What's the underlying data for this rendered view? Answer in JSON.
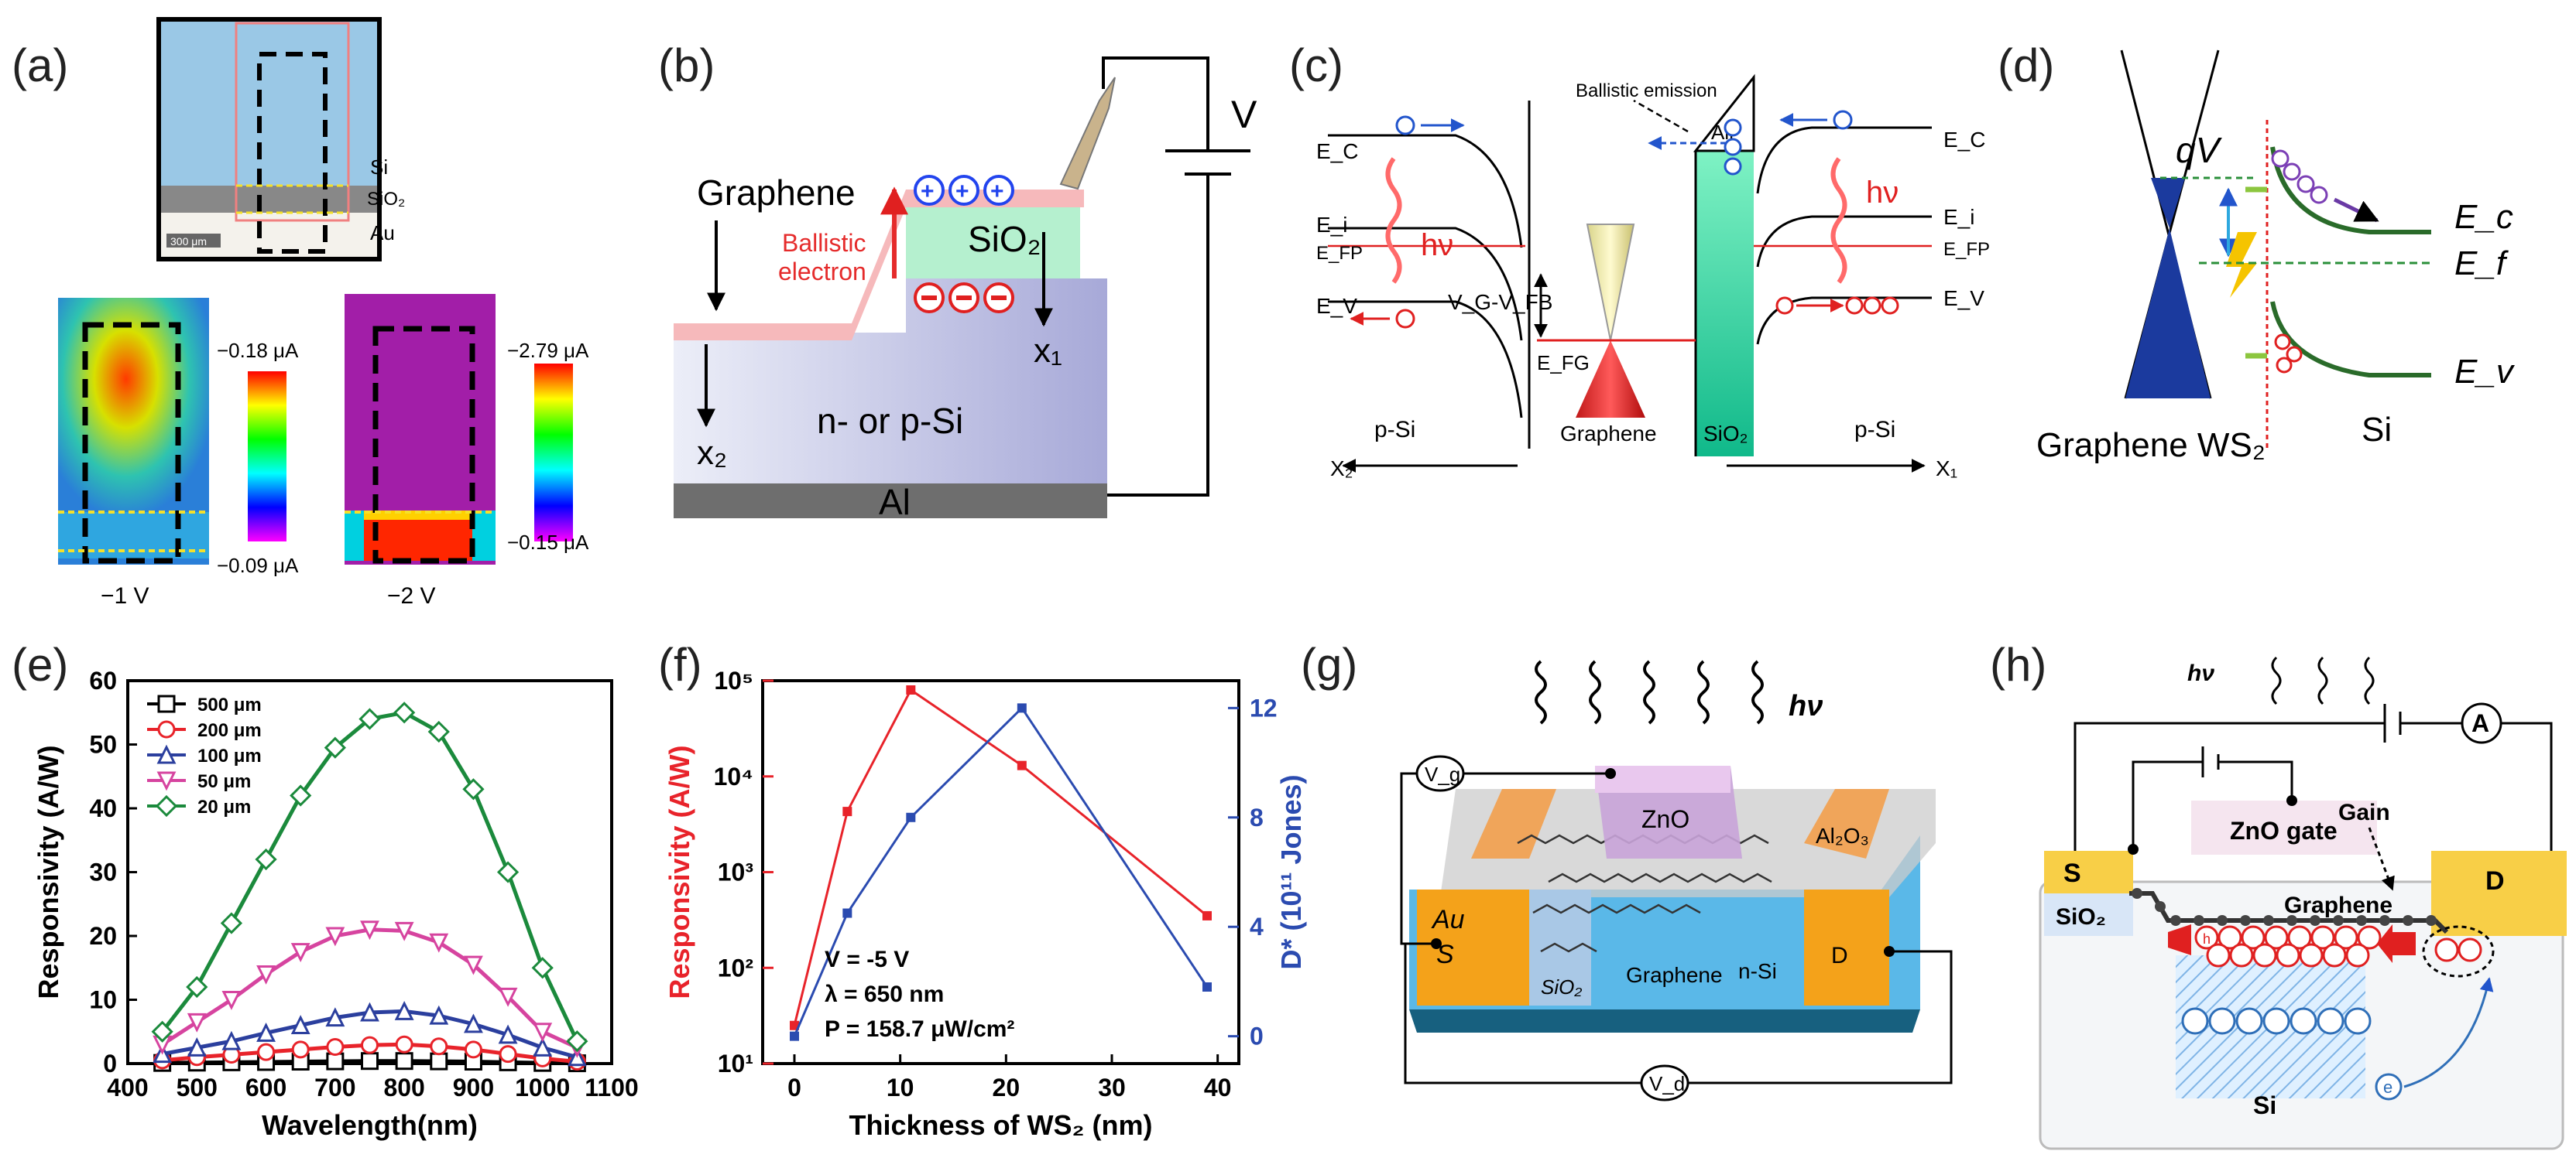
{
  "figure": {
    "panel_labels": [
      "(a)",
      "(b)",
      "(c)",
      "(d)",
      "(e)",
      "(f)",
      "(g)",
      "(h)"
    ]
  },
  "panel_a": {
    "micro_labels": {
      "si": "Si",
      "sio2": "SiO₂",
      "au": "Au",
      "scale": "300 μm"
    },
    "map1": {
      "max": "−0.18 μA",
      "min": "−0.09 μA",
      "bias": "−1 V"
    },
    "map2": {
      "max": "−2.79 μA",
      "min": "−0.15 μA",
      "bias": "−2 V"
    }
  },
  "panel_b": {
    "graphene": "Graphene",
    "ballistic1": "Ballistic",
    "ballistic2": "electron",
    "sio2": "SiO₂",
    "si": "n- or p-Si",
    "al": "Al",
    "x1": "x₁",
    "x2": "x₂",
    "v": "V"
  },
  "panel_c": {
    "ballistic_emission": "Ballistic emission",
    "air": "Air",
    "ec": "E_C",
    "ei": "E_i",
    "efp": "E_FP",
    "ev": "E_V",
    "hv": "hν",
    "vg_vfb": "V_G-V_FB",
    "efg": "E_FG",
    "graphene": "Graphene",
    "sio2": "SiO₂",
    "psi": "p-Si",
    "x1": "X₁",
    "x2": "X₂"
  },
  "panel_d": {
    "qv": "qV",
    "ec": "E_c",
    "ef": "E_f",
    "ev": "E_v",
    "graphene_ws2": "Graphene WS₂",
    "si": "Si"
  },
  "panel_g": {
    "hv": "hν",
    "vg": "V_g",
    "vd": "V_d",
    "zno": "ZnO",
    "al2o3": "Al₂O₃",
    "au": "Au",
    "s": "S",
    "d": "D",
    "sio2": "SiO₂",
    "graphene": "Graphene",
    "nsi": "n-Si"
  },
  "panel_h": {
    "hv": "hν",
    "a": "A",
    "zno_gate": "ZnO gate",
    "gain": "Gain",
    "s": "S",
    "d": "D",
    "sio2": "SiO₂",
    "graphene": "Graphene",
    "si": "Si",
    "h": "h",
    "e": "e"
  },
  "chart_data": [
    {
      "panel": "(e)",
      "type": "line",
      "title": "",
      "xlabel": "Wavelength(nm)",
      "ylabel": "Responsivity (A/W)",
      "xlim": [
        400,
        1100
      ],
      "ylim": [
        0,
        60
      ],
      "xticks": [
        400,
        500,
        600,
        700,
        800,
        900,
        1000,
        1100
      ],
      "yticks": [
        0,
        10,
        20,
        30,
        40,
        50,
        60
      ],
      "legend_position": "top-left",
      "x": [
        450,
        500,
        550,
        600,
        650,
        700,
        750,
        800,
        850,
        900,
        950,
        1000,
        1050
      ],
      "series": [
        {
          "name": "500 μm",
          "color": "#000000",
          "marker": "square",
          "values": [
            0.1,
            0.15,
            0.2,
            0.25,
            0.3,
            0.35,
            0.4,
            0.4,
            0.35,
            0.3,
            0.2,
            0.1,
            0.05
          ]
        },
        {
          "name": "200 μm",
          "color": "#e8232a",
          "marker": "circle",
          "values": [
            0.5,
            1.0,
            1.4,
            1.8,
            2.2,
            2.6,
            2.9,
            3.0,
            2.7,
            2.2,
            1.5,
            0.8,
            0.3
          ]
        },
        {
          "name": "100 μm",
          "color": "#2b3f9e",
          "marker": "triangle",
          "values": [
            1.5,
            2.5,
            3.5,
            4.8,
            6.0,
            7.2,
            8.0,
            8.2,
            7.5,
            6.2,
            4.5,
            2.5,
            1.0
          ]
        },
        {
          "name": "50 μm",
          "color": "#d6449f",
          "marker": "triangle-down",
          "values": [
            3.0,
            6.5,
            10.0,
            14.0,
            17.5,
            20.0,
            21.0,
            20.8,
            19.0,
            15.5,
            10.5,
            5.0,
            2.5
          ]
        },
        {
          "name": "20 μm",
          "color": "#1b8a3c",
          "marker": "diamond",
          "values": [
            5.0,
            12.0,
            22.0,
            32.0,
            42.0,
            49.5,
            54.0,
            55.0,
            52.0,
            43.0,
            30.0,
            15.0,
            3.5
          ]
        }
      ]
    },
    {
      "panel": "(f)",
      "type": "line",
      "xlabel": "Thickness of WS₂ (nm)",
      "ylabel_left": "Responsivity (A/W)",
      "ylabel_right": "D* (10¹¹ Jones)",
      "xlim": [
        -3,
        42
      ],
      "xticks": [
        0,
        10,
        20,
        30,
        40
      ],
      "y_left_scale": "log",
      "y_left_lim": [
        10,
        100000
      ],
      "y_left_ticks": [
        "10¹",
        "10²",
        "10³",
        "10⁴",
        "10⁵"
      ],
      "y_right_lim": [
        -1,
        13
      ],
      "y_right_ticks": [
        0,
        4,
        8,
        12
      ],
      "annotation": [
        "V = -5 V",
        "λ = 650 nm",
        "P = 158.7 μW/cm²"
      ],
      "x": [
        0,
        5,
        11,
        21.5,
        39
      ],
      "series": [
        {
          "name": "Responsivity",
          "axis": "left",
          "color": "#e8232a",
          "values": [
            25,
            4300,
            80000,
            13000,
            350
          ]
        },
        {
          "name": "D*",
          "axis": "right",
          "color": "#2b4bb0",
          "values": [
            0.0,
            4.5,
            8.0,
            12.0,
            1.8
          ]
        }
      ]
    }
  ]
}
